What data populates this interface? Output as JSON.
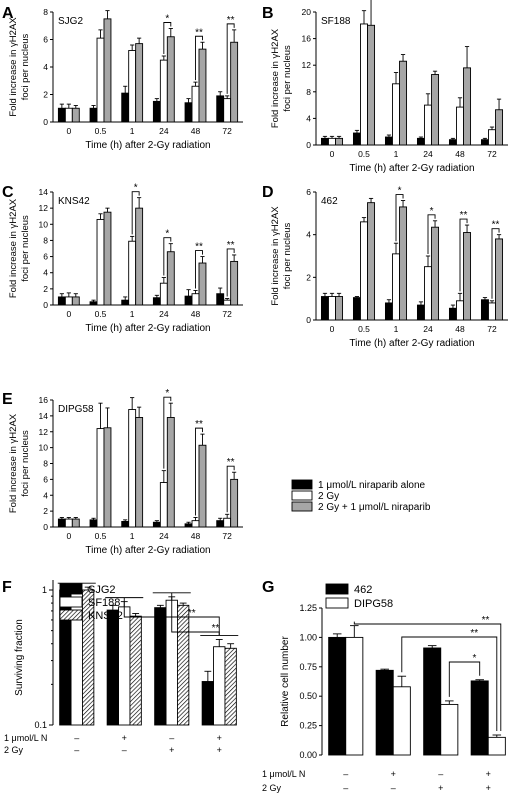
{
  "chart_data": [
    {
      "type": "bar",
      "panel": "A",
      "sample": "SJG2",
      "categories": [
        "0",
        "0.5",
        "1",
        "24",
        "48",
        "72"
      ],
      "xlabel": "Time (h) after 2-Gy radiation",
      "ylabel": [
        "Fold increase in γH2AX",
        "foci per nucleus"
      ],
      "ylim": [
        0,
        8
      ],
      "yticks": [
        0,
        2,
        4,
        6,
        8
      ],
      "series": [
        {
          "values": [
            1.0,
            1.0,
            2.1,
            1.5,
            1.4,
            1.9
          ],
          "errors": [
            0.3,
            0.2,
            0.5,
            0.2,
            0.3,
            0.3
          ]
        },
        {
          "values": [
            1.0,
            6.1,
            5.2,
            4.5,
            2.6,
            1.7
          ],
          "errors": [
            0.3,
            0.6,
            0.4,
            0.3,
            0.3,
            0.2
          ]
        },
        {
          "values": [
            1.0,
            7.5,
            5.7,
            6.2,
            5.3,
            5.8
          ],
          "errors": [
            0.2,
            0.6,
            0.4,
            0.6,
            0.5,
            0.9
          ]
        }
      ],
      "significance": [
        {
          "category": "24",
          "label": "*"
        },
        {
          "category": "48",
          "label": "**"
        },
        {
          "category": "72",
          "label": "**"
        }
      ]
    },
    {
      "type": "bar",
      "panel": "B",
      "sample": "SF188",
      "categories": [
        "0",
        "0.5",
        "1",
        "24",
        "48",
        "72"
      ],
      "xlabel": "Time (h) after 2-Gy radiation",
      "ylabel": [
        "Fold increase in γH2AX",
        "foci per nucleus"
      ],
      "ylim": [
        0,
        20
      ],
      "yticks": [
        0,
        4,
        8,
        12,
        16,
        20
      ],
      "series": [
        {
          "values": [
            1.0,
            1.8,
            1.2,
            1.0,
            0.8,
            0.8
          ],
          "errors": [
            0.3,
            0.4,
            0.3,
            0.2,
            0.2,
            0.2
          ]
        },
        {
          "values": [
            1.0,
            18.2,
            9.2,
            6.0,
            5.7,
            2.3
          ],
          "errors": [
            0.3,
            2.0,
            1.7,
            1.7,
            1.4,
            0.4
          ]
        },
        {
          "values": [
            1.0,
            18.0,
            12.6,
            10.6,
            11.6,
            5.3
          ],
          "errors": [
            0.3,
            4.8,
            1.0,
            0.5,
            3.2,
            1.6
          ]
        }
      ]
    },
    {
      "type": "bar",
      "panel": "C",
      "sample": "KNS42",
      "categories": [
        "0",
        "0.5",
        "1",
        "24",
        "48",
        "72"
      ],
      "xlabel": "Time (h) after 2-Gy radiation",
      "ylabel": [
        "Fold increase in γH2AX",
        "foci per nucleus"
      ],
      "ylim": [
        0,
        14
      ],
      "yticks": [
        0,
        2,
        4,
        6,
        8,
        10,
        12,
        14
      ],
      "series": [
        {
          "values": [
            1.0,
            0.4,
            0.6,
            0.9,
            1.1,
            1.4
          ],
          "errors": [
            0.4,
            0.2,
            0.4,
            0.3,
            0.8,
            0.7
          ]
        },
        {
          "values": [
            1.0,
            10.6,
            7.9,
            2.7,
            1.4,
            0.6
          ],
          "errors": [
            0.5,
            0.7,
            0.6,
            0.7,
            0.4,
            0.2
          ]
        },
        {
          "values": [
            1.0,
            11.5,
            12.0,
            6.6,
            5.2,
            5.4
          ],
          "errors": [
            0.4,
            0.5,
            1.3,
            1.0,
            0.8,
            0.8
          ]
        }
      ],
      "significance": [
        {
          "category": "1",
          "label": "*"
        },
        {
          "category": "24",
          "label": "*"
        },
        {
          "category": "48",
          "label": "**"
        },
        {
          "category": "72",
          "label": "**"
        }
      ]
    },
    {
      "type": "bar",
      "panel": "D",
      "sample": "462",
      "categories": [
        "0",
        "0.5",
        "1",
        "24",
        "48",
        "72"
      ],
      "xlabel": "Time (h) after 2-Gy radiation",
      "ylabel": [
        "Fold increase in γH2AX",
        "foci per nucleus"
      ],
      "ylim": [
        0,
        6
      ],
      "yticks": [
        0,
        2,
        4,
        6
      ],
      "series": [
        {
          "values": [
            1.1,
            1.05,
            0.8,
            0.7,
            0.55,
            0.95
          ],
          "errors": [
            0.15,
            0.05,
            0.15,
            0.15,
            0.15,
            0.1
          ]
        },
        {
          "values": [
            1.1,
            4.6,
            3.1,
            2.5,
            0.9,
            0.8
          ],
          "errors": [
            0.15,
            0.2,
            0.5,
            0.5,
            0.35,
            0.1
          ]
        },
        {
          "values": [
            1.1,
            5.5,
            5.3,
            4.35,
            4.1,
            3.8
          ],
          "errors": [
            0.15,
            0.2,
            0.3,
            0.3,
            0.35,
            0.2
          ]
        }
      ],
      "significance": [
        {
          "category": "1",
          "label": "*"
        },
        {
          "category": "24",
          "label": "*"
        },
        {
          "category": "48",
          "label": "**"
        },
        {
          "category": "72",
          "label": "**"
        }
      ]
    },
    {
      "type": "bar",
      "panel": "E",
      "sample": "DIPG58",
      "categories": [
        "0",
        "0.5",
        "1",
        "24",
        "48",
        "72"
      ],
      "xlabel": "Time (h) after 2-Gy radiation",
      "ylabel": [
        "Fold increase in γH2AX",
        "foci per nucleus"
      ],
      "ylim": [
        0,
        16
      ],
      "yticks": [
        0,
        2,
        4,
        6,
        8,
        10,
        12,
        14,
        16
      ],
      "series": [
        {
          "values": [
            1.0,
            0.9,
            0.7,
            0.6,
            0.4,
            0.8
          ],
          "errors": [
            0.2,
            0.2,
            0.2,
            0.2,
            0.2,
            0.3
          ]
        },
        {
          "values": [
            1.0,
            12.4,
            14.8,
            5.6,
            0.8,
            1.1
          ],
          "errors": [
            0.2,
            3.2,
            1.5,
            1.5,
            0.4,
            0.5
          ]
        },
        {
          "values": [
            1.0,
            12.5,
            13.8,
            13.8,
            10.3,
            6.0
          ],
          "errors": [
            0.2,
            2.5,
            1.3,
            1.8,
            1.4,
            0.9
          ]
        }
      ],
      "significance": [
        {
          "category": "24",
          "label": "*"
        },
        {
          "category": "48",
          "label": "**"
        },
        {
          "category": "72",
          "label": "**"
        }
      ]
    },
    {
      "type": "bar",
      "panel": "F",
      "yscale": "log",
      "ylabel": "Surviving fraction",
      "ylim": [
        0.1,
        1
      ],
      "yticks": [
        0.1,
        1
      ],
      "treatment_rows": [
        {
          "label": "1 μmol/L N",
          "values": [
            "–",
            "+",
            "–",
            "+"
          ]
        },
        {
          "label": "2 Gy",
          "values": [
            "–",
            "–",
            "+",
            "+"
          ]
        }
      ],
      "series": [
        {
          "name": "SJG2",
          "values": [
            1.0,
            0.71,
            0.74,
            0.21
          ],
          "errors": [
            0.03,
            0.06,
            0.03,
            0.04
          ]
        },
        {
          "name": "SF188",
          "values": [
            1.0,
            0.75,
            0.84,
            0.38
          ],
          "errors": [
            0.05,
            0.07,
            0.05,
            0.05
          ]
        },
        {
          "name": "KNS42",
          "values": [
            1.0,
            0.64,
            0.77,
            0.37
          ],
          "errors": [
            0.05,
            0.03,
            0.03,
            0.03
          ]
        }
      ],
      "legend": "top-left",
      "significance": [
        {
          "label": "**"
        },
        {
          "label": "**"
        }
      ]
    },
    {
      "type": "bar",
      "panel": "G",
      "ylabel": "Relative cell number",
      "ylim": [
        0,
        1.25
      ],
      "yticks": [
        "0.00",
        "0.25",
        "0.50",
        "0.75",
        "1.00",
        "1.25"
      ],
      "treatment_rows": [
        {
          "label": "1 μmol/L N",
          "values": [
            "–",
            "+",
            "–",
            "+"
          ]
        },
        {
          "label": "2 Gy",
          "values": [
            "–",
            "–",
            "+",
            "+"
          ]
        }
      ],
      "series": [
        {
          "name": "462",
          "values": [
            1.0,
            0.72,
            0.91,
            0.63
          ],
          "errors": [
            0.03,
            0.01,
            0.02,
            0.01
          ]
        },
        {
          "name": "DIPG58",
          "values": [
            1.0,
            0.58,
            0.43,
            0.15
          ],
          "errors": [
            0.1,
            0.09,
            0.03,
            0.02
          ]
        }
      ],
      "legend": "top-left",
      "significance": [
        {
          "label": "*"
        },
        {
          "label": "**"
        },
        {
          "label": "**"
        }
      ]
    }
  ],
  "legend_ABCDE": [
    {
      "label": "1 μmol/L niraparib alone",
      "color": "#000000"
    },
    {
      "label": "2 Gy",
      "color": "#ffffff"
    },
    {
      "label": "2 Gy + 1 μmol/L niraparib",
      "color": "#a6a6a6"
    }
  ],
  "colors": {
    "black": "#000000",
    "white": "#ffffff",
    "gray": "#a6a6a6"
  }
}
